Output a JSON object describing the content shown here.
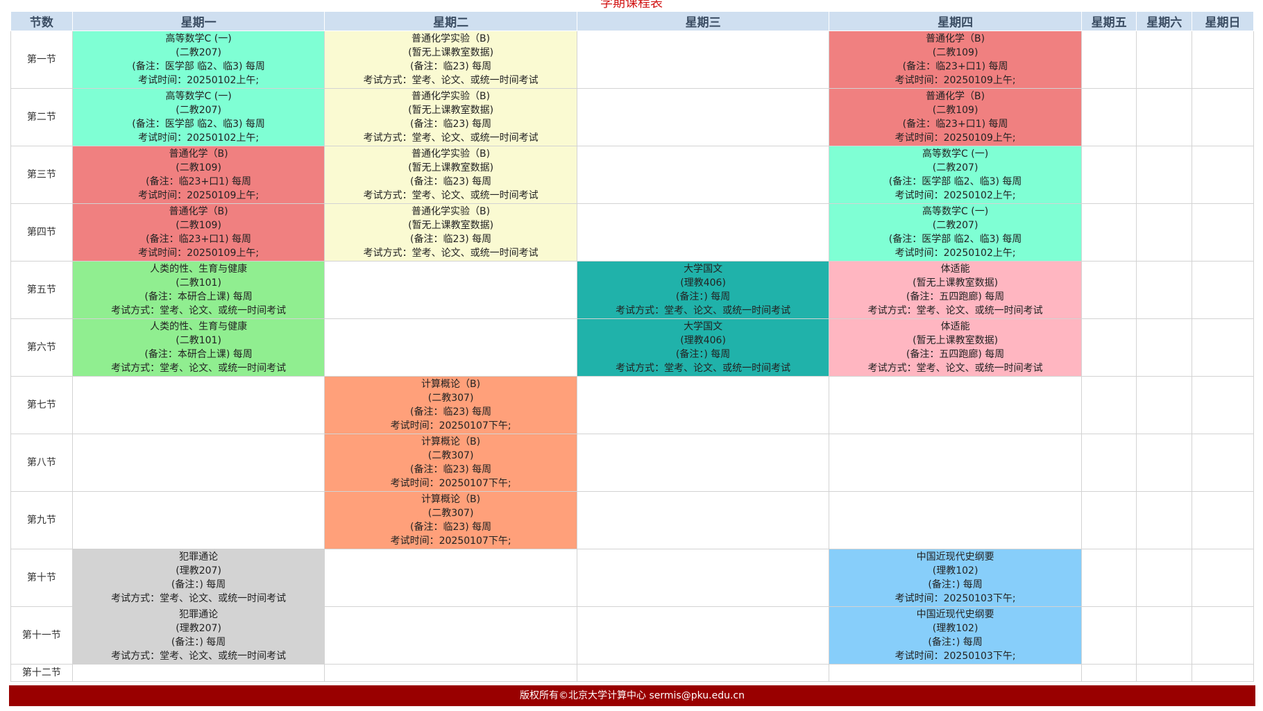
{
  "page": {
    "title": "学期课程表",
    "footer": "版权所有©北京大学计算中心    sermis@pku.edu.cn"
  },
  "colors": {
    "header_bg": "#cfdff0",
    "math": "#7fffd4",
    "chem_lab": "#fafad2",
    "chem": "#f08080",
    "health": "#90ee90",
    "chinese": "#20b2aa",
    "pe": "#ffb6c1",
    "computing": "#ffa07a",
    "crime": "#d3d3d3",
    "history": "#87cefa",
    "footer_bg": "#990000",
    "title_color": "#d11414"
  },
  "headers": [
    "节数",
    "星期一",
    "星期二",
    "星期三",
    "星期四",
    "星期五",
    "星期六",
    "星期日"
  ],
  "periods": [
    "第一节",
    "第二节",
    "第三节",
    "第四节",
    "第五节",
    "第六节",
    "第七节",
    "第八节",
    "第九节",
    "第十节",
    "第十一节",
    "第十二节"
  ],
  "courses": {
    "math": [
      "高等数学C (一)",
      "(二教207)",
      "(备注：医学部 临2、临3) 每周",
      "考试时间：20250102上午;"
    ],
    "chem_lab": [
      "普通化学实验（B)",
      "(暂无上课教室数据)",
      "(备注：临23) 每周",
      "考试方式：堂考、论文、或统一时间考试"
    ],
    "chem": [
      "普通化学（B)",
      "(二教109)",
      "(备注：临23+口1) 每周",
      "考试时间：20250109上午;"
    ],
    "health": [
      "人类的性、生育与健康",
      "(二教101)",
      "(备注：本研合上课) 每周",
      "考试方式：堂考、论文、或统一时间考试"
    ],
    "chinese": [
      "大学国文",
      "(理教406)",
      "(备注：) 每周",
      "考试方式：堂考、论文、或统一时间考试"
    ],
    "pe": [
      "体适能",
      "(暂无上课教室数据)",
      "(备注：五四跑廊) 每周",
      "考试方式：堂考、论文、或统一时间考试"
    ],
    "computing": [
      "计算概论（B)",
      "(二教307)",
      "(备注：临23) 每周",
      "考试时间：20250107下午;"
    ],
    "crime": [
      "犯罪通论",
      "(理教207)",
      "(备注：) 每周",
      "考试方式：堂考、论文、或统一时间考试"
    ],
    "history": [
      "中国近现代史纲要",
      "(理教102)",
      "(备注：) 每周",
      "考试时间：20250103下午;"
    ]
  },
  "grid": [
    [
      "math",
      "chem_lab",
      "",
      "chem",
      "",
      "",
      ""
    ],
    [
      "math",
      "chem_lab",
      "",
      "chem",
      "",
      "",
      ""
    ],
    [
      "chem",
      "chem_lab",
      "",
      "math",
      "",
      "",
      ""
    ],
    [
      "chem",
      "chem_lab",
      "",
      "math",
      "",
      "",
      ""
    ],
    [
      "health",
      "",
      "chinese",
      "pe",
      "",
      "",
      ""
    ],
    [
      "health",
      "",
      "chinese",
      "pe",
      "",
      "",
      ""
    ],
    [
      "",
      "computing",
      "",
      "",
      "",
      "",
      ""
    ],
    [
      "",
      "computing",
      "",
      "",
      "",
      "",
      ""
    ],
    [
      "",
      "computing",
      "",
      "",
      "",
      "",
      ""
    ],
    [
      "crime",
      "",
      "",
      "history",
      "",
      "",
      ""
    ],
    [
      "crime",
      "",
      "",
      "history",
      "",
      "",
      ""
    ],
    [
      "",
      "",
      "",
      "",
      "",
      "",
      ""
    ]
  ]
}
